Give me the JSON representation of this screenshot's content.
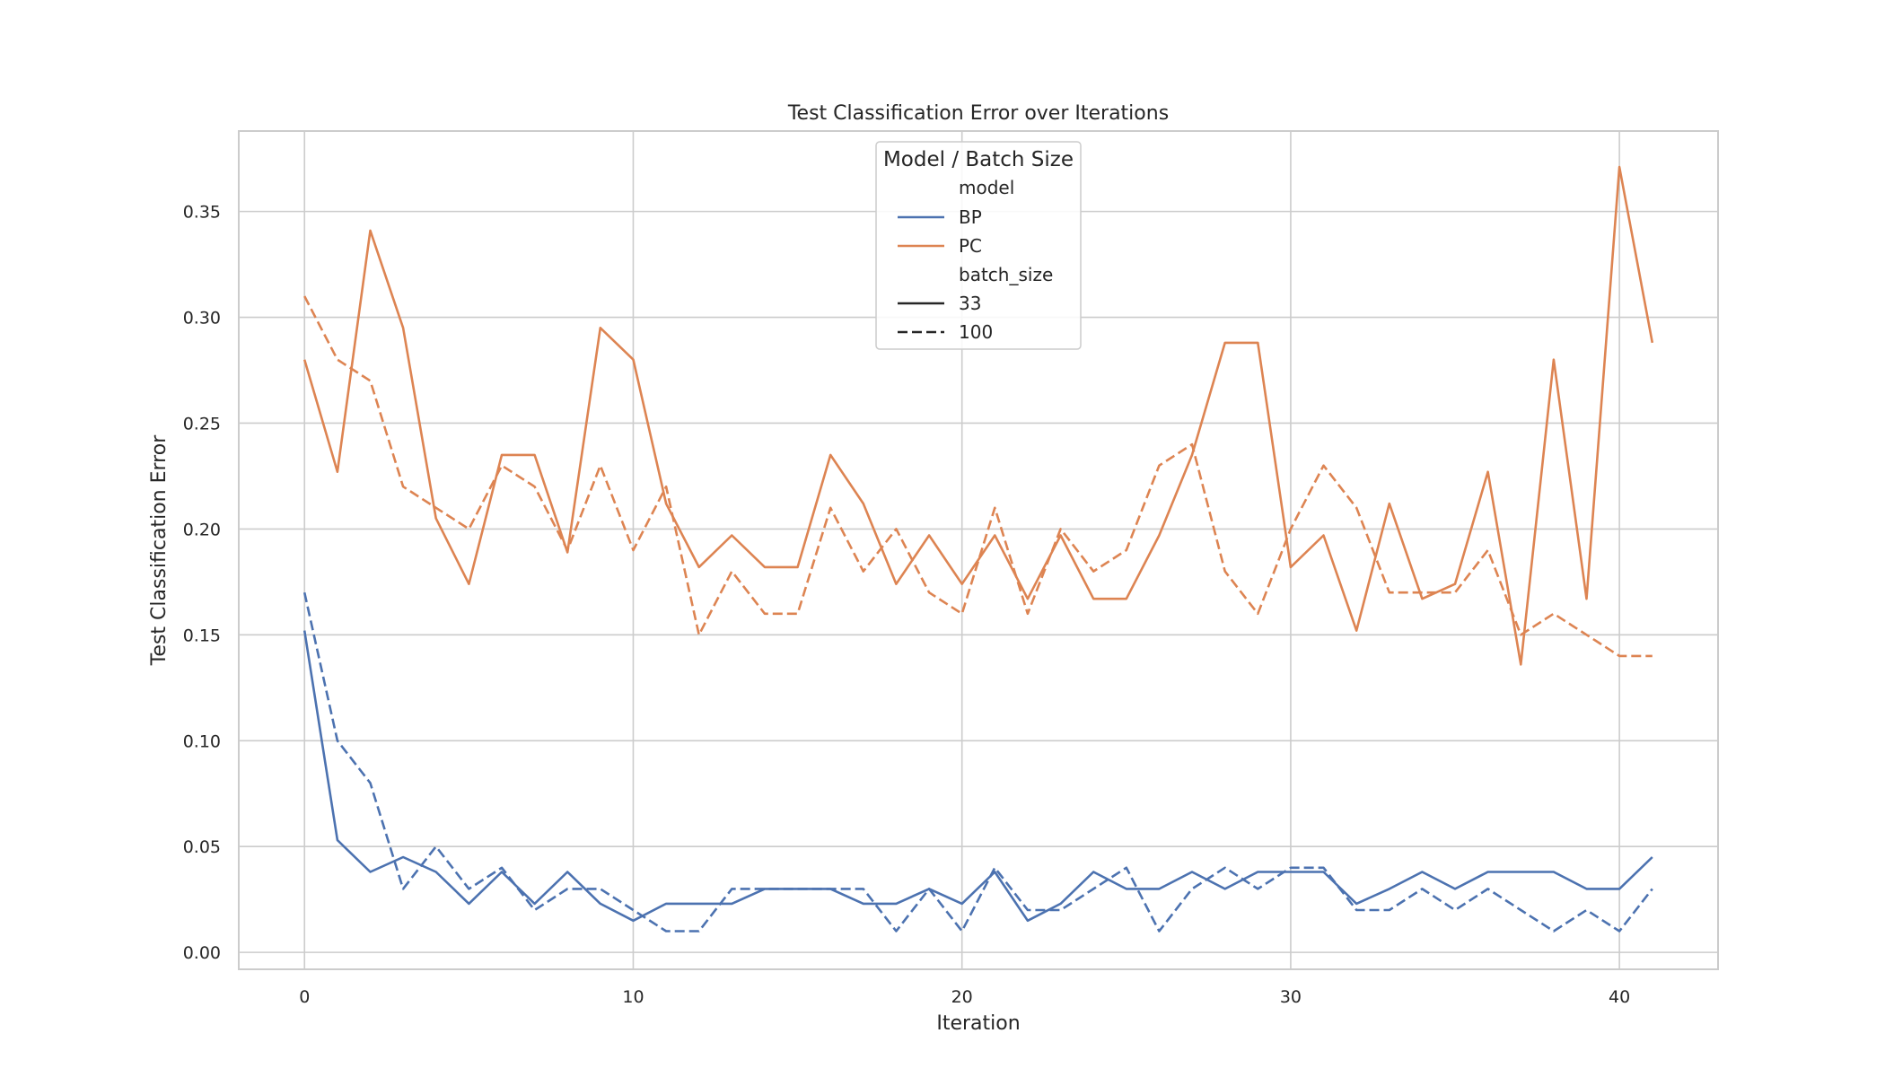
{
  "chart_data": {
    "type": "line",
    "title": "Test Classification Error over Iterations",
    "xlabel": "Iteration",
    "ylabel": "Test Classification Error",
    "xlim": [
      -2,
      43
    ],
    "ylim": [
      -0.008,
      0.388
    ],
    "xticks": [
      0,
      10,
      20,
      30,
      40
    ],
    "yticks": [
      0.0,
      0.05,
      0.1,
      0.15,
      0.2,
      0.25,
      0.3,
      0.35
    ],
    "ytick_labels": [
      "0.00",
      "0.05",
      "0.10",
      "0.15",
      "0.20",
      "0.25",
      "0.30",
      "0.35"
    ],
    "grid": true,
    "legend": {
      "title": "Model / Batch Size",
      "placement": "top-center",
      "model_header": "model",
      "batch_header": "batch_size",
      "models": [
        {
          "label": "BP",
          "color": "#4c72b0"
        },
        {
          "label": "PC",
          "color": "#dd8452"
        }
      ],
      "batch_sizes": [
        {
          "label": "33",
          "style": "solid"
        },
        {
          "label": "100",
          "style": "dashed"
        }
      ]
    },
    "x": [
      0,
      1,
      2,
      3,
      4,
      5,
      6,
      7,
      8,
      9,
      10,
      11,
      12,
      13,
      14,
      15,
      16,
      17,
      18,
      19,
      20,
      21,
      22,
      23,
      24,
      25,
      26,
      27,
      28,
      29,
      30,
      31,
      32,
      33,
      34,
      35,
      36,
      37,
      38,
      39,
      40,
      41
    ],
    "series": [
      {
        "model": "BP",
        "batch_size": "33",
        "color": "#4c72b0",
        "style": "solid",
        "values": [
          0.152,
          0.053,
          0.038,
          0.045,
          0.038,
          0.023,
          0.038,
          0.023,
          0.038,
          0.023,
          0.015,
          0.023,
          0.023,
          0.023,
          0.03,
          0.03,
          0.03,
          0.023,
          0.023,
          0.03,
          0.023,
          0.038,
          0.015,
          0.023,
          0.038,
          0.03,
          0.03,
          0.038,
          0.03,
          0.038,
          0.038,
          0.038,
          0.023,
          0.03,
          0.038,
          0.03,
          0.038,
          0.038,
          0.038,
          0.03,
          0.03,
          0.045
        ]
      },
      {
        "model": "BP",
        "batch_size": "100",
        "color": "#4c72b0",
        "style": "dashed",
        "values": [
          0.17,
          0.1,
          0.08,
          0.03,
          0.05,
          0.03,
          0.04,
          0.02,
          0.03,
          0.03,
          0.02,
          0.01,
          0.01,
          0.03,
          0.03,
          0.03,
          0.03,
          0.03,
          0.01,
          0.03,
          0.01,
          0.04,
          0.02,
          0.02,
          0.03,
          0.04,
          0.01,
          0.03,
          0.04,
          0.03,
          0.04,
          0.04,
          0.02,
          0.02,
          0.03,
          0.02,
          0.03,
          0.02,
          0.01,
          0.02,
          0.01,
          0.03
        ]
      },
      {
        "model": "PC",
        "batch_size": "33",
        "color": "#dd8452",
        "style": "solid",
        "values": [
          0.28,
          0.227,
          0.341,
          0.295,
          0.205,
          0.174,
          0.235,
          0.235,
          0.189,
          0.295,
          0.28,
          0.212,
          0.182,
          0.197,
          0.182,
          0.182,
          0.235,
          0.212,
          0.174,
          0.197,
          0.174,
          0.197,
          0.167,
          0.197,
          0.167,
          0.167,
          0.197,
          0.235,
          0.288,
          0.288,
          0.182,
          0.197,
          0.152,
          0.212,
          0.167,
          0.174,
          0.227,
          0.136,
          0.28,
          0.167,
          0.371,
          0.288
        ]
      },
      {
        "model": "PC",
        "batch_size": "100",
        "color": "#dd8452",
        "style": "dashed",
        "values": [
          0.31,
          0.28,
          0.27,
          0.22,
          0.21,
          0.2,
          0.23,
          0.22,
          0.19,
          0.23,
          0.19,
          0.22,
          0.15,
          0.18,
          0.16,
          0.16,
          0.21,
          0.18,
          0.2,
          0.17,
          0.16,
          0.21,
          0.16,
          0.2,
          0.18,
          0.19,
          0.23,
          0.24,
          0.18,
          0.16,
          0.2,
          0.23,
          0.21,
          0.17,
          0.17,
          0.17,
          0.19,
          0.15,
          0.16,
          0.15,
          0.14,
          0.14
        ]
      }
    ]
  }
}
